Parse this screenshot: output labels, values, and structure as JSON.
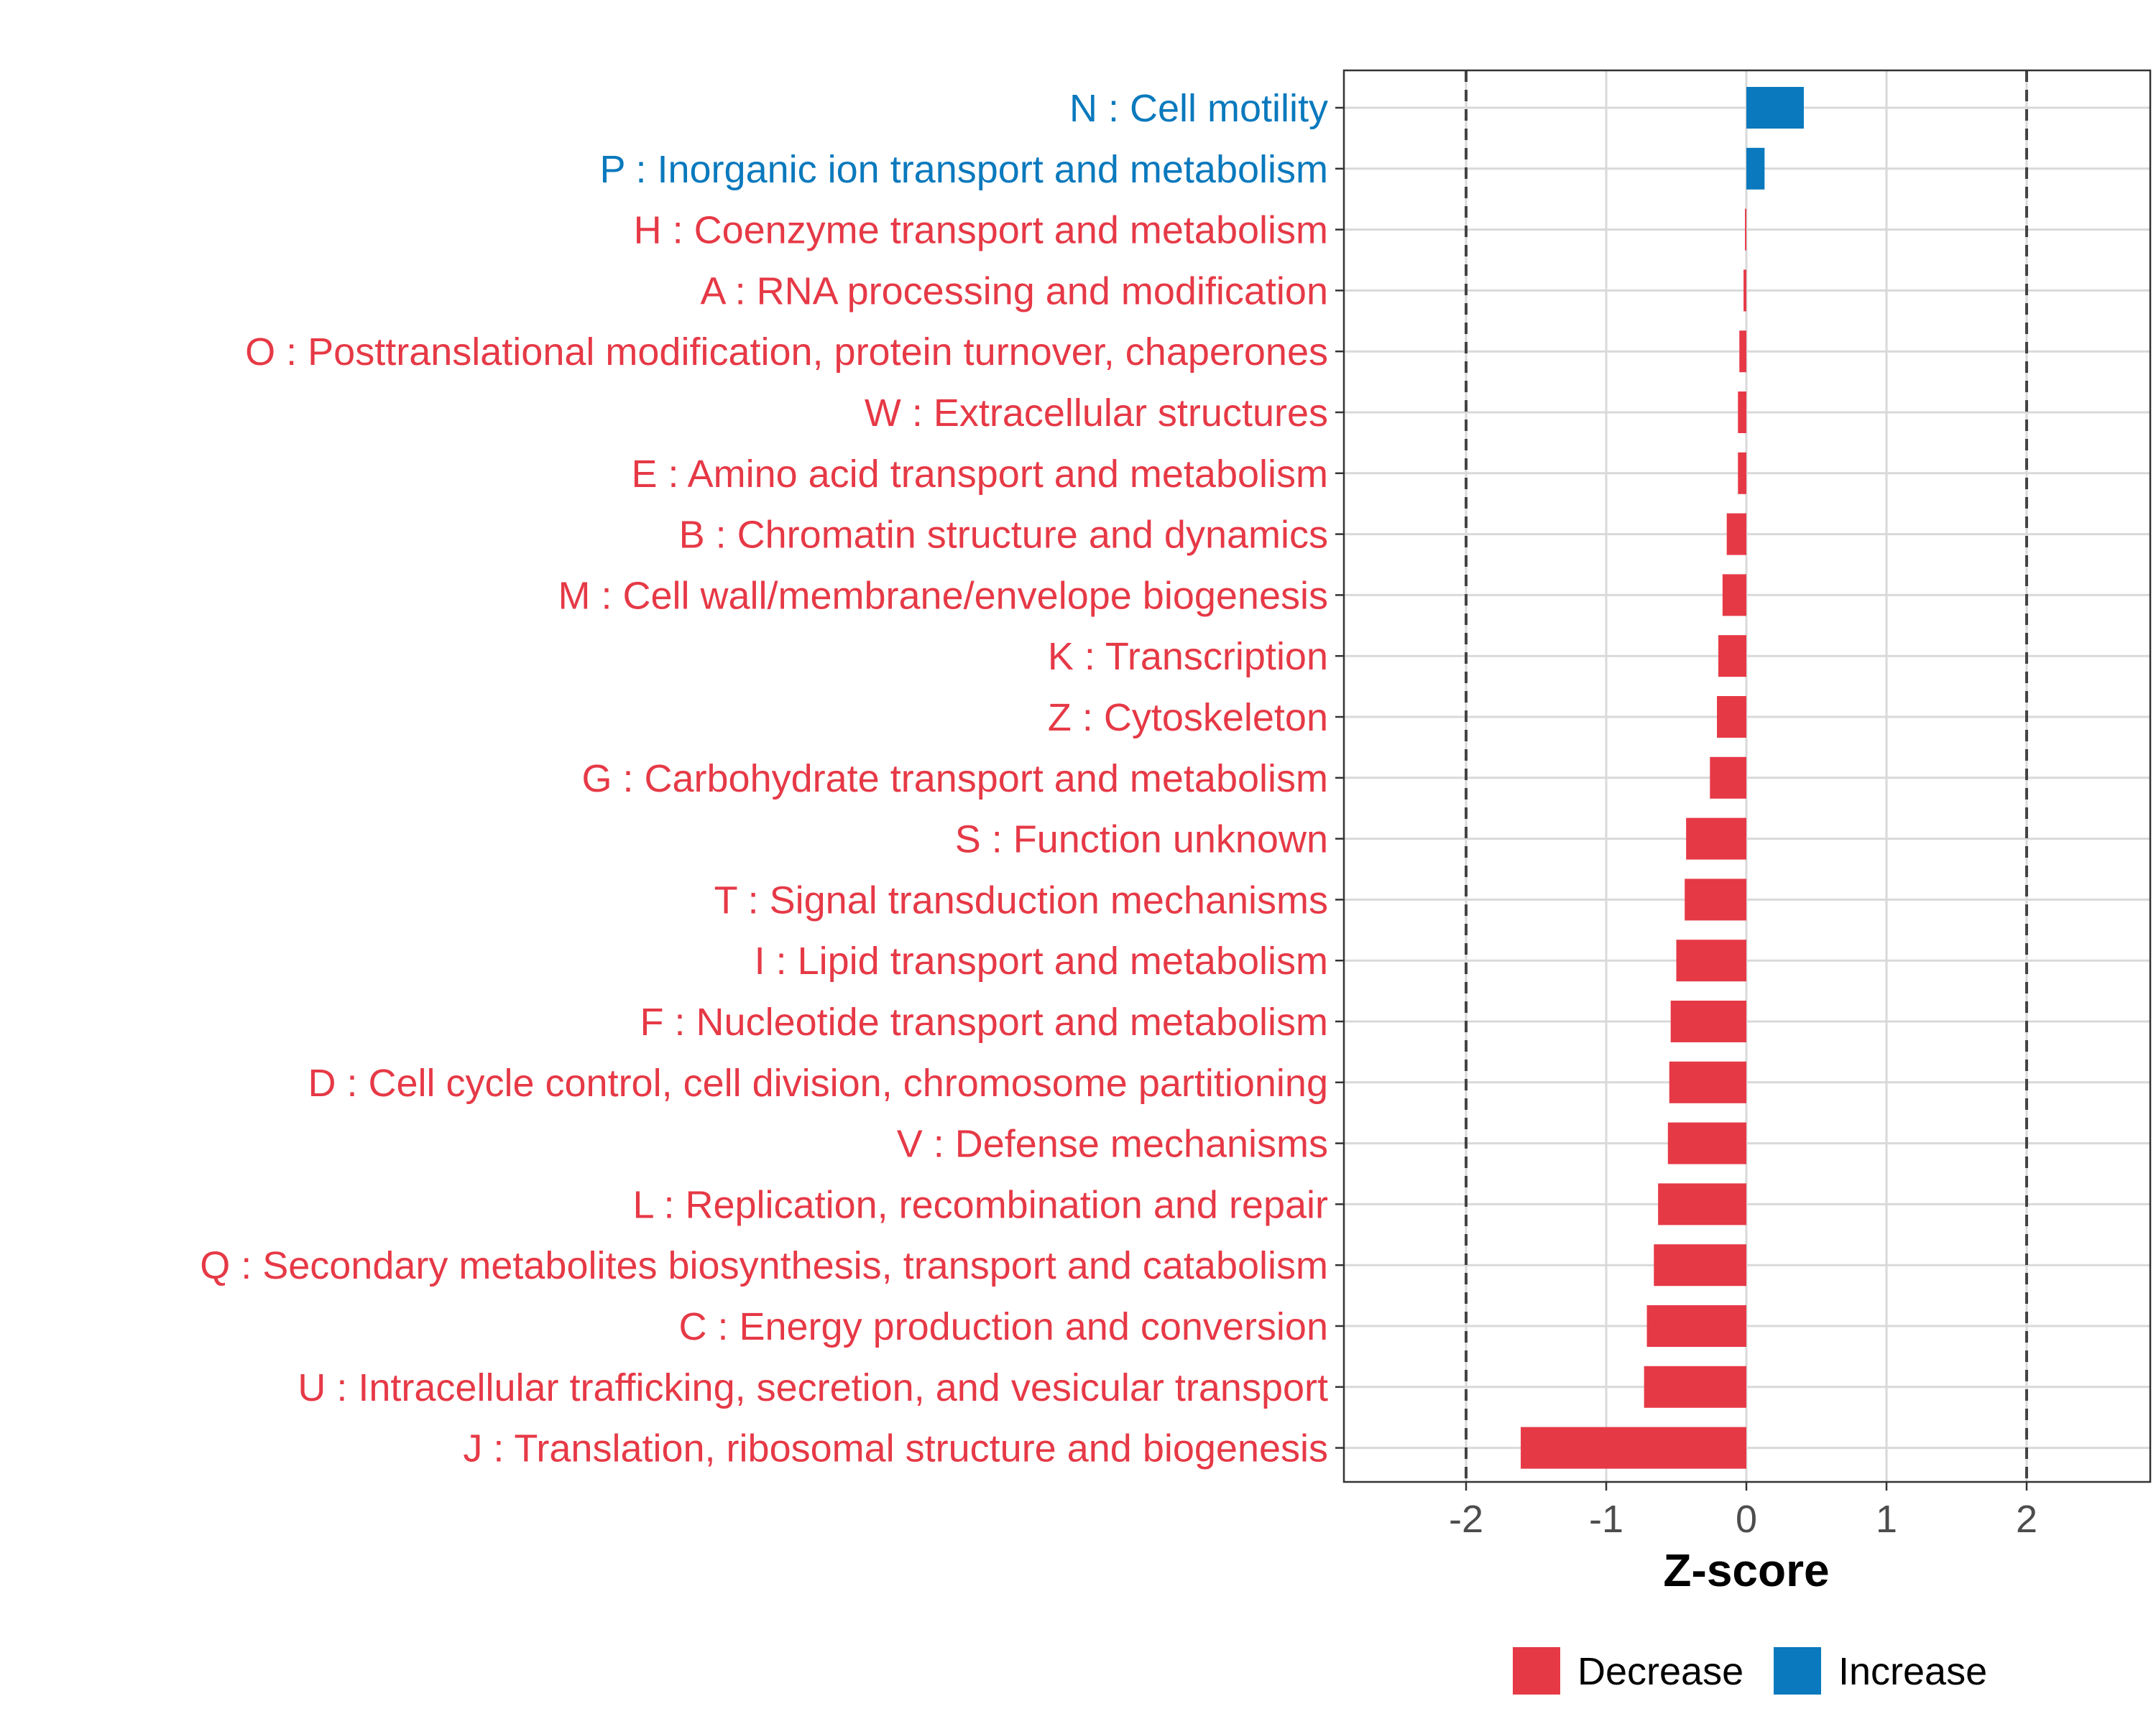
{
  "chart_data": {
    "type": "bar",
    "orientation": "horizontal",
    "xlabel": "Z-score",
    "xlim": [
      -2.85,
      2.85
    ],
    "xticks": [
      -2,
      -1,
      0,
      1,
      2
    ],
    "xtick_labels": [
      "-2",
      "-1",
      "0",
      "1",
      "2"
    ],
    "reference_lines": [
      -2,
      2
    ],
    "grid": true,
    "legend_position": "bottom",
    "colors": {
      "Decrease": "#e63946",
      "Increase": "#0a79bd"
    },
    "legend": [
      {
        "label": "Decrease",
        "key": "Decrease"
      },
      {
        "label": "Increase",
        "key": "Increase"
      }
    ],
    "categories": [
      "N : Cell motility",
      "P : Inorganic ion transport and metabolism",
      "H : Coenzyme transport and metabolism",
      "A : RNA processing and modification",
      "O : Posttranslational modification, protein turnover, chaperones",
      "W : Extracellular structures",
      "E : Amino acid transport and metabolism",
      "B : Chromatin structure and dynamics",
      "M : Cell wall/membrane/envelope biogenesis",
      "K : Transcription",
      "Z : Cytoskeleton",
      "G : Carbohydrate transport and metabolism",
      "S : Function unknown",
      "T : Signal transduction mechanisms",
      "I : Lipid transport and metabolism",
      "F : Nucleotide transport and metabolism",
      "D : Cell cycle control, cell division, chromosome partitioning",
      "V : Defense mechanisms",
      "L : Replication, recombination and repair",
      "Q : Secondary metabolites biosynthesis, transport and catabolism",
      "C : Energy production and conversion",
      "U : Intracellular trafficking, secretion, and vesicular transport",
      "J : Translation, ribosomal structure and biogenesis"
    ],
    "values": [
      0.41,
      0.13,
      -0.01,
      -0.02,
      -0.05,
      -0.06,
      -0.06,
      -0.14,
      -0.17,
      -0.2,
      -0.21,
      -0.26,
      -0.43,
      -0.44,
      -0.5,
      -0.54,
      -0.55,
      -0.56,
      -0.63,
      -0.66,
      -0.71,
      -0.73,
      -1.61
    ],
    "directions": [
      "Increase",
      "Increase",
      "Decrease",
      "Decrease",
      "Decrease",
      "Decrease",
      "Decrease",
      "Decrease",
      "Decrease",
      "Decrease",
      "Decrease",
      "Decrease",
      "Decrease",
      "Decrease",
      "Decrease",
      "Decrease",
      "Decrease",
      "Decrease",
      "Decrease",
      "Decrease",
      "Decrease",
      "Decrease",
      "Decrease"
    ]
  }
}
